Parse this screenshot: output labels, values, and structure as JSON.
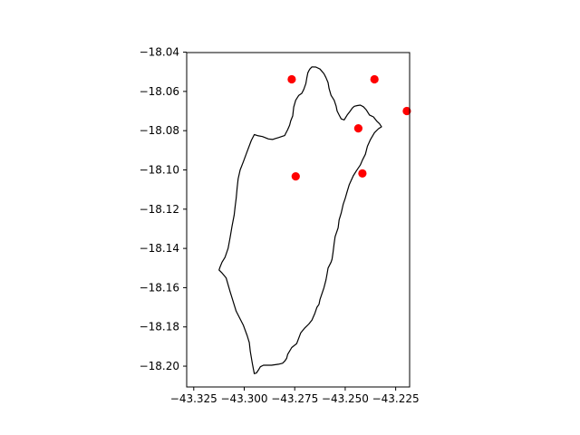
{
  "chart_data": {
    "type": "scatter",
    "title": "",
    "xlabel": "",
    "ylabel": "",
    "xlim": [
      -43.3285,
      -43.2181
    ],
    "ylim": [
      -18.2106,
      -18.0402
    ],
    "grid": false,
    "xticks": [
      -43.325,
      -43.3,
      -43.275,
      -43.25,
      -43.225
    ],
    "xtick_labels": [
      "−43.325",
      "−43.300",
      "−43.275",
      "−43.250",
      "−43.225"
    ],
    "yticks": [
      -18.04,
      -18.06,
      -18.08,
      -18.1,
      -18.12,
      -18.14,
      -18.16,
      -18.18,
      -18.2
    ],
    "ytick_labels": [
      "−18.04",
      "−18.06",
      "−18.08",
      "−18.10",
      "−18.12",
      "−18.14",
      "−18.16",
      "−18.18",
      "−18.20"
    ],
    "points": {
      "color": "#ff0000",
      "x": [
        -43.2765,
        -43.2355,
        -43.2195,
        -43.2435,
        -43.2415,
        -43.2745
      ],
      "y": [
        -18.0538,
        -18.0538,
        -18.07,
        -18.0788,
        -18.1018,
        -18.1033
      ]
    },
    "boundary": {
      "color": "#000000",
      "x": [
        -43.2675,
        -43.2665,
        -43.2645,
        -43.2625,
        -43.2605,
        -43.2595,
        -43.2585,
        -43.258,
        -43.257,
        -43.2555,
        -43.2545,
        -43.254,
        -43.253,
        -43.252,
        -43.2505,
        -43.249,
        -43.2475,
        -43.2465,
        -43.2455,
        -43.244,
        -43.2425,
        -43.241,
        -43.2395,
        -43.238,
        -43.236,
        -43.2345,
        -43.233,
        -43.232,
        -43.2335,
        -43.2355,
        -43.2375,
        -43.239,
        -43.24,
        -43.2415,
        -43.2425,
        -43.2445,
        -43.246,
        -43.248,
        -43.249,
        -43.25,
        -43.251,
        -43.252,
        -43.253,
        -43.2535,
        -43.255,
        -43.2555,
        -43.256,
        -43.2565,
        -43.257,
        -43.2585,
        -43.259,
        -43.2595,
        -43.2605,
        -43.262,
        -43.2625,
        -43.263,
        -43.264,
        -43.265,
        -43.2665,
        -43.268,
        -43.27,
        -43.272,
        -43.274,
        -43.2765,
        -43.2785,
        -43.279,
        -43.28,
        -43.281,
        -43.283,
        -43.2865,
        -43.2905,
        -43.292,
        -43.293,
        -43.294,
        -43.295,
        -43.2955,
        -43.296,
        -43.2965,
        -43.297,
        -43.2975,
        -43.2985,
        -43.3005,
        -43.304,
        -43.307,
        -43.309,
        -43.311,
        -43.3125,
        -43.312,
        -43.311,
        -43.3095,
        -43.308,
        -43.307,
        -43.306,
        -43.305,
        -43.3045,
        -43.304,
        -43.3035,
        -43.303,
        -43.302,
        -43.3005,
        -43.2985,
        -43.2965,
        -43.295,
        -43.2935,
        -43.291,
        -43.288,
        -43.286,
        -43.2845,
        -43.283,
        -43.2815,
        -43.28,
        -43.2795,
        -43.2785,
        -43.2775,
        -43.277,
        -43.276,
        -43.2755,
        -43.2745,
        -43.273,
        -43.2715,
        -43.2705,
        -43.2695,
        -43.269,
        -43.2685,
        -43.268,
        -43.2675
      ],
      "y": [
        -18.0486,
        -18.0475,
        -18.0476,
        -18.0486,
        -18.051,
        -18.053,
        -18.0555,
        -18.0585,
        -18.062,
        -18.0645,
        -18.0675,
        -18.07,
        -18.072,
        -18.074,
        -18.0745,
        -18.072,
        -18.07,
        -18.0685,
        -18.0676,
        -18.0672,
        -18.067,
        -18.0678,
        -18.0695,
        -18.072,
        -18.073,
        -18.075,
        -18.0765,
        -18.078,
        -18.079,
        -18.081,
        -18.0845,
        -18.088,
        -18.092,
        -18.095,
        -18.0975,
        -18.1005,
        -18.103,
        -18.1075,
        -18.111,
        -18.1145,
        -18.1175,
        -18.122,
        -18.1255,
        -18.1295,
        -18.134,
        -18.1375,
        -18.142,
        -18.1455,
        -18.147,
        -18.15,
        -18.153,
        -18.156,
        -18.16,
        -18.1645,
        -18.166,
        -18.1685,
        -18.17,
        -18.173,
        -18.1765,
        -18.1785,
        -18.1805,
        -18.183,
        -18.1885,
        -18.1905,
        -18.194,
        -18.196,
        -18.1975,
        -18.1985,
        -18.199,
        -18.1995,
        -18.1995,
        -18.2003,
        -18.202,
        -18.2035,
        -18.2038,
        -18.2012,
        -18.1985,
        -18.1955,
        -18.1925,
        -18.188,
        -18.1845,
        -18.179,
        -18.172,
        -18.162,
        -18.155,
        -18.1525,
        -18.151,
        -18.1495,
        -18.147,
        -18.1445,
        -18.14,
        -18.1345,
        -18.1285,
        -18.123,
        -18.1185,
        -18.1145,
        -18.109,
        -18.1045,
        -18.1,
        -18.096,
        -18.0905,
        -18.085,
        -18.082,
        -18.0825,
        -18.083,
        -18.0842,
        -18.0845,
        -18.084,
        -18.0835,
        -18.083,
        -18.0825,
        -18.0815,
        -18.0795,
        -18.0772,
        -18.075,
        -18.0725,
        -18.068,
        -18.0645,
        -18.062,
        -18.061,
        -18.059,
        -18.056,
        -18.053,
        -18.0505,
        -18.0495,
        -18.0486
      ]
    }
  }
}
